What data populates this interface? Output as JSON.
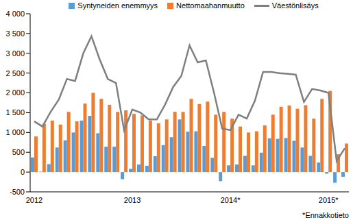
{
  "chart_data": {
    "type": "bar",
    "categories": [
      "2012",
      null,
      null,
      null,
      null,
      null,
      null,
      null,
      null,
      null,
      null,
      null,
      "2013",
      null,
      null,
      null,
      null,
      null,
      null,
      null,
      null,
      null,
      null,
      null,
      "2014*",
      null,
      null,
      null,
      null,
      null,
      null,
      null,
      null,
      null,
      null,
      null,
      "2015*",
      null,
      null
    ],
    "series": [
      {
        "name": "Syntyneiden enemmyys",
        "type": "bar",
        "color": "#5B9BD5",
        "values": [
          370,
          10,
          200,
          620,
          800,
          1000,
          1300,
          1420,
          980,
          640,
          640,
          -180,
          80,
          190,
          160,
          400,
          680,
          880,
          1330,
          1020,
          1030,
          660,
          360,
          -230,
          170,
          190,
          410,
          170,
          490,
          850,
          840,
          860,
          790,
          620,
          410,
          240,
          -40,
          -270,
          -120
        ]
      },
      {
        "name": "Nettomaahanmuutto",
        "type": "bar",
        "color": "#ED7D31",
        "values": [
          900,
          1220,
          1300,
          1200,
          1520,
          1280,
          1730,
          2000,
          1850,
          1700,
          1520,
          1560,
          1470,
          1430,
          1300,
          1230,
          1330,
          1520,
          1520,
          1850,
          1720,
          1780,
          1450,
          1520,
          1350,
          1150,
          1000,
          1030,
          1180,
          1450,
          1650,
          1680,
          1600,
          1690,
          1350,
          1850,
          2050,
          450,
          720
        ]
      },
      {
        "name": "Väestönlisäys",
        "type": "line",
        "color": "#7F7F7F",
        "values": [
          1280,
          1150,
          1520,
          1830,
          2350,
          2300,
          3000,
          3430,
          2850,
          2350,
          2250,
          1050,
          1580,
          1500,
          1330,
          1330,
          1700,
          2150,
          2430,
          3200,
          2770,
          2820,
          2000,
          1100,
          1060,
          1450,
          1350,
          1800,
          2530,
          2530,
          2500,
          2480,
          2460,
          1770,
          2100,
          2060,
          2000,
          280,
          600
        ]
      }
    ],
    "ylim": [
      -500,
      4000
    ],
    "yticks": [
      -500,
      0,
      500,
      {
        "value": 1000,
        "label": "1 000"
      },
      {
        "value": 1500,
        "label": "1 500"
      },
      {
        "value": 2000,
        "label": "2 000"
      },
      {
        "value": 2500,
        "label": "2 500"
      },
      {
        "value": 3000,
        "label": "3 000"
      },
      {
        "value": 3500,
        "label": "3 500"
      },
      {
        "value": 4000,
        "label": "4 000"
      }
    ],
    "grid": false,
    "legend": "top",
    "annotations": [
      "*Ennakkotieto"
    ]
  }
}
